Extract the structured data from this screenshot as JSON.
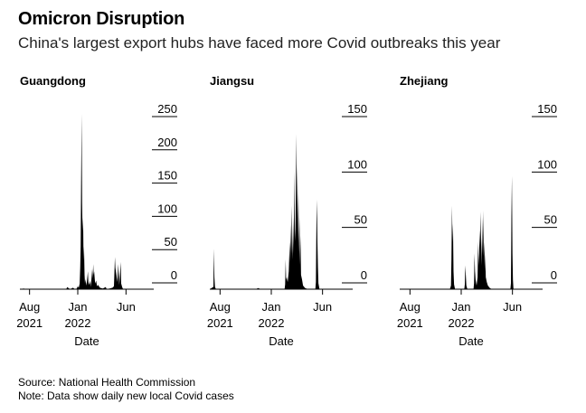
{
  "title": "Omicron Disruption",
  "subtitle": "China's largest export hubs have faced more Covid outbreaks this year",
  "source": "Source: National Health Commission",
  "note": "Note: Data show daily new local Covid cases",
  "colors": {
    "bar": "#000000",
    "axis": "#000000",
    "text": "#000000"
  },
  "chart_data": [
    {
      "type": "area",
      "title": "Guangdong",
      "xlabel": "Date",
      "ylabel": "",
      "x_ticks": [
        {
          "label": "Aug\n2021",
          "month": 1
        },
        {
          "label": "Jan\n2022",
          "month": 6
        },
        {
          "label": "Jun",
          "month": 11
        }
      ],
      "xlim_months": [
        0,
        15
      ],
      "y_ticks": [
        0,
        50,
        100,
        150,
        200,
        250
      ],
      "ylim": [
        0,
        250
      ],
      "series": [
        {
          "name": "Daily new local cases",
          "points": [
            [
              0,
              0
            ],
            [
              0.4,
              1
            ],
            [
              0.6,
              0
            ],
            [
              4.8,
              0
            ],
            [
              4.9,
              3
            ],
            [
              5.1,
              1
            ],
            [
              5.2,
              0
            ],
            [
              5.5,
              2
            ],
            [
              5.7,
              0
            ],
            [
              5.9,
              1
            ],
            [
              6.0,
              4
            ],
            [
              6.1,
              2
            ],
            [
              6.2,
              8
            ],
            [
              6.25,
              30
            ],
            [
              6.3,
              60
            ],
            [
              6.35,
              150
            ],
            [
              6.4,
              245
            ],
            [
              6.45,
              120
            ],
            [
              6.5,
              80
            ],
            [
              6.55,
              100
            ],
            [
              6.6,
              40
            ],
            [
              6.65,
              60
            ],
            [
              6.7,
              20
            ],
            [
              6.75,
              8
            ],
            [
              6.8,
              14
            ],
            [
              6.9,
              5
            ],
            [
              7.0,
              18
            ],
            [
              7.05,
              25
            ],
            [
              7.1,
              10
            ],
            [
              7.2,
              6
            ],
            [
              7.3,
              12
            ],
            [
              7.35,
              3
            ],
            [
              7.5,
              28
            ],
            [
              7.55,
              15
            ],
            [
              7.6,
              35
            ],
            [
              7.65,
              20
            ],
            [
              7.7,
              25
            ],
            [
              7.8,
              8
            ],
            [
              7.9,
              12
            ],
            [
              8.0,
              4
            ],
            [
              8.1,
              6
            ],
            [
              8.3,
              2
            ],
            [
              8.6,
              1
            ],
            [
              8.9,
              3
            ],
            [
              9.0,
              0
            ],
            [
              9.3,
              1
            ],
            [
              9.6,
              2
            ],
            [
              9.75,
              4
            ],
            [
              9.85,
              45
            ],
            [
              9.9,
              30
            ],
            [
              10.0,
              20
            ],
            [
              10.1,
              10
            ],
            [
              10.2,
              35
            ],
            [
              10.3,
              6
            ],
            [
              10.4,
              25
            ],
            [
              10.45,
              38
            ],
            [
              10.5,
              8
            ],
            [
              10.6,
              3
            ],
            [
              10.7,
              0
            ],
            [
              15,
              0
            ]
          ]
        }
      ]
    },
    {
      "type": "area",
      "title": "Jiangsu",
      "xlabel": "Date",
      "ylabel": "",
      "x_ticks": [
        {
          "label": "Aug\n2021",
          "month": 1
        },
        {
          "label": "Jan\n2022",
          "month": 6
        },
        {
          "label": "Jun",
          "month": 11
        }
      ],
      "xlim_months": [
        0,
        15
      ],
      "y_ticks": [
        0,
        50,
        100,
        150
      ],
      "ylim": [
        0,
        150
      ],
      "series": [
        {
          "name": "Daily new local cases",
          "points": [
            [
              0,
              0
            ],
            [
              0.35,
              2
            ],
            [
              0.4,
              34
            ],
            [
              0.45,
              10
            ],
            [
              0.5,
              2
            ],
            [
              0.6,
              0
            ],
            [
              4.5,
              0
            ],
            [
              4.7,
              1
            ],
            [
              5.0,
              0
            ],
            [
              7.3,
              0
            ],
            [
              7.35,
              4
            ],
            [
              7.4,
              25
            ],
            [
              7.45,
              8
            ],
            [
              7.5,
              10
            ],
            [
              7.6,
              6
            ],
            [
              7.7,
              15
            ],
            [
              7.8,
              40
            ],
            [
              7.85,
              22
            ],
            [
              7.9,
              55
            ],
            [
              7.95,
              30
            ],
            [
              8.0,
              70
            ],
            [
              8.05,
              45
            ],
            [
              8.1,
              25
            ],
            [
              8.15,
              60
            ],
            [
              8.2,
              30
            ],
            [
              8.25,
              100
            ],
            [
              8.3,
              50
            ],
            [
              8.35,
              40
            ],
            [
              8.4,
              90
            ],
            [
              8.45,
              130
            ],
            [
              8.5,
              60
            ],
            [
              8.55,
              105
            ],
            [
              8.6,
              40
            ],
            [
              8.65,
              80
            ],
            [
              8.7,
              30
            ],
            [
              8.75,
              60
            ],
            [
              8.8,
              20
            ],
            [
              8.85,
              45
            ],
            [
              8.9,
              12
            ],
            [
              9.0,
              8
            ],
            [
              9.1,
              3
            ],
            [
              9.3,
              1
            ],
            [
              9.6,
              0
            ],
            [
              10.3,
              0
            ],
            [
              10.35,
              6
            ],
            [
              10.4,
              55
            ],
            [
              10.45,
              75
            ],
            [
              10.5,
              40
            ],
            [
              10.55,
              18
            ],
            [
              10.6,
              5
            ],
            [
              10.7,
              0
            ],
            [
              15,
              0
            ]
          ]
        }
      ]
    },
    {
      "type": "area",
      "title": "Zhejiang",
      "xlabel": "Date",
      "ylabel": "",
      "x_ticks": [
        {
          "label": "Aug\n2021",
          "month": 1
        },
        {
          "label": "Jan\n2022",
          "month": 6
        },
        {
          "label": "Jun",
          "month": 11
        }
      ],
      "xlim_months": [
        0,
        15
      ],
      "y_ticks": [
        0,
        50,
        100,
        150
      ],
      "ylim": [
        0,
        150
      ],
      "series": [
        {
          "name": "Daily new local cases",
          "points": [
            [
              0,
              0
            ],
            [
              4.9,
              0
            ],
            [
              5.0,
              3
            ],
            [
              5.05,
              25
            ],
            [
              5.1,
              70
            ],
            [
              5.15,
              40
            ],
            [
              5.2,
              55
            ],
            [
              5.25,
              15
            ],
            [
              5.3,
              4
            ],
            [
              5.4,
              0
            ],
            [
              6.3,
              0
            ],
            [
              6.35,
              4
            ],
            [
              6.4,
              20
            ],
            [
              6.45,
              12
            ],
            [
              6.5,
              3
            ],
            [
              6.6,
              0
            ],
            [
              7.2,
              0
            ],
            [
              7.25,
              5
            ],
            [
              7.3,
              30
            ],
            [
              7.35,
              15
            ],
            [
              7.4,
              8
            ],
            [
              7.5,
              3
            ],
            [
              7.6,
              10
            ],
            [
              7.65,
              40
            ],
            [
              7.7,
              20
            ],
            [
              7.75,
              30
            ],
            [
              7.8,
              50
            ],
            [
              7.85,
              35
            ],
            [
              7.9,
              65
            ],
            [
              7.95,
              40
            ],
            [
              8.0,
              20
            ],
            [
              8.05,
              60
            ],
            [
              8.1,
              30
            ],
            [
              8.15,
              66
            ],
            [
              8.2,
              28
            ],
            [
              8.25,
              40
            ],
            [
              8.3,
              15
            ],
            [
              8.35,
              30
            ],
            [
              8.4,
              10
            ],
            [
              8.5,
              6
            ],
            [
              8.6,
              3
            ],
            [
              8.8,
              1
            ],
            [
              9.0,
              0
            ],
            [
              10.8,
              0
            ],
            [
              10.85,
              5
            ],
            [
              10.9,
              60
            ],
            [
              10.95,
              95
            ],
            [
              11.0,
              30
            ],
            [
              11.05,
              8
            ],
            [
              11.1,
              0
            ],
            [
              15,
              0
            ]
          ]
        }
      ]
    }
  ]
}
